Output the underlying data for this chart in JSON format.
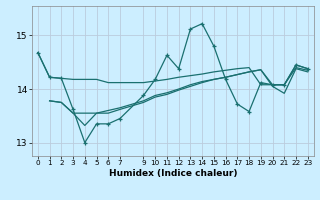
{
  "xlabel": "Humidex (Indice chaleur)",
  "bg_color": "#cceeff",
  "grid_color": "#bbccdd",
  "line_color": "#1a7070",
  "xlim": [
    -0.5,
    23.5
  ],
  "ylim": [
    12.75,
    15.55
  ],
  "yticks": [
    13,
    14,
    15
  ],
  "xticks": [
    0,
    1,
    2,
    3,
    4,
    5,
    6,
    7,
    9,
    10,
    11,
    12,
    13,
    14,
    15,
    16,
    17,
    18,
    19,
    20,
    21,
    22,
    23
  ],
  "s1_x": [
    0,
    1,
    2,
    3,
    4,
    5,
    6,
    7,
    9,
    10,
    11,
    12,
    13,
    14,
    15,
    16,
    17,
    18,
    19,
    20,
    21,
    22,
    23
  ],
  "s1_y": [
    14.68,
    14.22,
    14.2,
    13.62,
    13.0,
    13.35,
    13.35,
    13.45,
    13.88,
    14.18,
    14.63,
    14.38,
    15.12,
    15.22,
    14.8,
    14.18,
    13.72,
    13.58,
    14.12,
    14.08,
    14.08,
    14.45,
    14.38
  ],
  "s2_x": [
    0,
    1,
    2,
    3,
    4,
    5,
    6,
    7,
    9,
    10,
    11,
    12,
    13,
    14,
    15,
    16,
    17,
    18,
    19,
    20,
    21,
    22,
    23
  ],
  "s2_y": [
    14.68,
    14.22,
    14.2,
    14.18,
    14.18,
    14.18,
    14.12,
    14.12,
    14.12,
    14.15,
    14.18,
    14.22,
    14.25,
    14.28,
    14.32,
    14.35,
    14.38,
    14.4,
    14.08,
    14.08,
    14.08,
    14.45,
    14.38
  ],
  "s3_x": [
    1,
    2,
    3,
    4,
    5,
    6,
    7,
    9,
    10,
    11,
    12,
    13,
    14,
    15,
    16,
    17,
    18,
    19,
    20,
    21,
    22,
    23
  ],
  "s3_y": [
    13.78,
    13.75,
    13.55,
    13.55,
    13.55,
    13.6,
    13.65,
    13.78,
    13.88,
    13.93,
    14.0,
    14.08,
    14.14,
    14.18,
    14.22,
    14.27,
    14.32,
    14.36,
    14.05,
    13.92,
    14.38,
    14.32
  ],
  "s4_x": [
    1,
    2,
    3,
    4,
    5,
    6,
    7,
    9,
    10,
    11,
    12,
    13,
    14,
    15,
    16,
    17,
    18,
    19,
    20,
    21,
    22,
    23
  ],
  "s4_y": [
    13.78,
    13.75,
    13.55,
    13.32,
    13.55,
    13.55,
    13.62,
    13.75,
    13.85,
    13.9,
    13.98,
    14.05,
    14.12,
    14.18,
    14.22,
    14.27,
    14.32,
    14.36,
    14.08,
    14.08,
    14.4,
    14.35
  ]
}
